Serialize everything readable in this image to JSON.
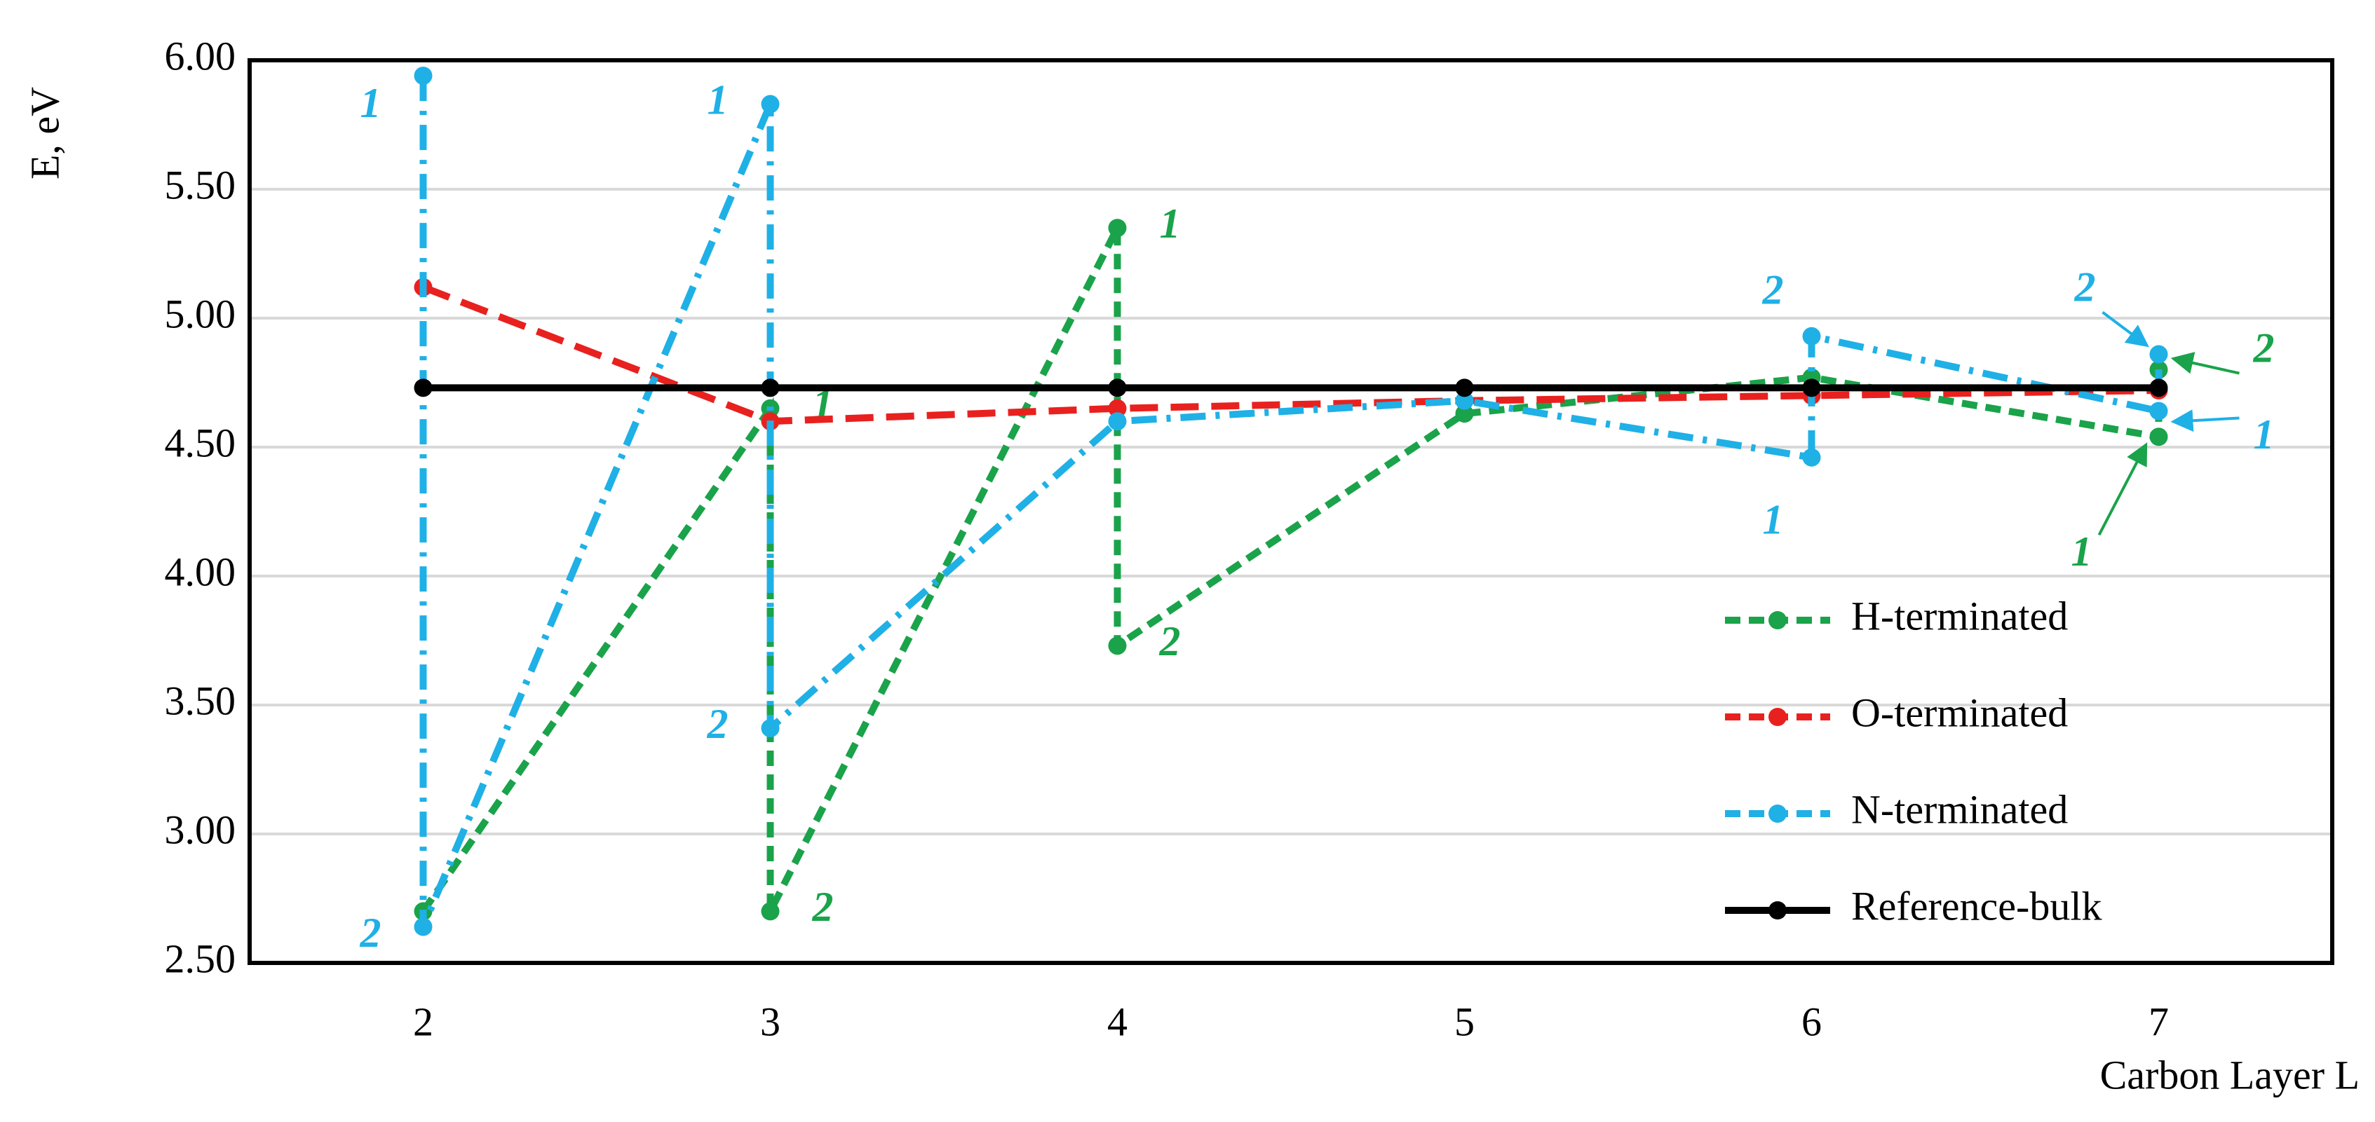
{
  "chart_data": {
    "type": "line",
    "ylabel": "E, eV",
    "xlabel": "Carbon Layer L",
    "xlim": [
      1.5,
      7.5
    ],
    "xticks": [
      2,
      3,
      4,
      5,
      6,
      7
    ],
    "ylim": [
      2.5,
      6
    ],
    "yticks": [
      {
        "value": 2.5,
        "label": "2.50"
      },
      {
        "value": 3,
        "label": "3.00"
      },
      {
        "value": 3.5,
        "label": "3.50"
      },
      {
        "value": 4,
        "label": "4.00"
      },
      {
        "value": 4.5,
        "label": "4.50"
      },
      {
        "value": 5,
        "label": "5.00"
      },
      {
        "value": 5.5,
        "label": "5.50"
      },
      {
        "value": 6,
        "label": "6.00"
      }
    ],
    "grid": true,
    "legend": "lower right",
    "series": [
      {
        "name": "H-terminated",
        "color": "#1aa34a",
        "dash": "dash",
        "x": [
          2,
          3,
          3,
          4,
          4,
          5,
          6,
          7,
          7
        ],
        "values": [
          2.7,
          4.65,
          2.7,
          5.35,
          3.73,
          4.63,
          4.77,
          4.54,
          4.8
        ],
        "point_labels": [
          null,
          "1",
          "2",
          "1",
          "2",
          null,
          null,
          "1",
          "2"
        ]
      },
      {
        "name": "O-terminated",
        "color": "#e8211f",
        "dash": "longdash",
        "x": [
          2,
          3,
          4,
          5,
          6,
          7
        ],
        "values": [
          5.12,
          4.6,
          4.65,
          4.68,
          4.7,
          4.72
        ]
      },
      {
        "name": "N-terminated",
        "color": "#1fb0e6",
        "dash": "dashdot",
        "x": [
          2,
          2,
          3,
          3,
          4,
          5,
          6,
          6,
          7,
          7
        ],
        "values": [
          5.94,
          2.64,
          5.83,
          3.41,
          4.6,
          4.68,
          4.46,
          4.93,
          4.64,
          4.86
        ],
        "point_labels": [
          "1",
          "2",
          "1",
          "2",
          null,
          null,
          "1",
          "2",
          "1",
          "2"
        ]
      },
      {
        "name": "Reference-bulk",
        "color": "#000000",
        "dash": "solid",
        "x": [
          2,
          3,
          4,
          5,
          6,
          7
        ],
        "values": [
          4.73,
          4.73,
          4.73,
          4.73,
          4.73,
          4.73
        ]
      }
    ]
  }
}
